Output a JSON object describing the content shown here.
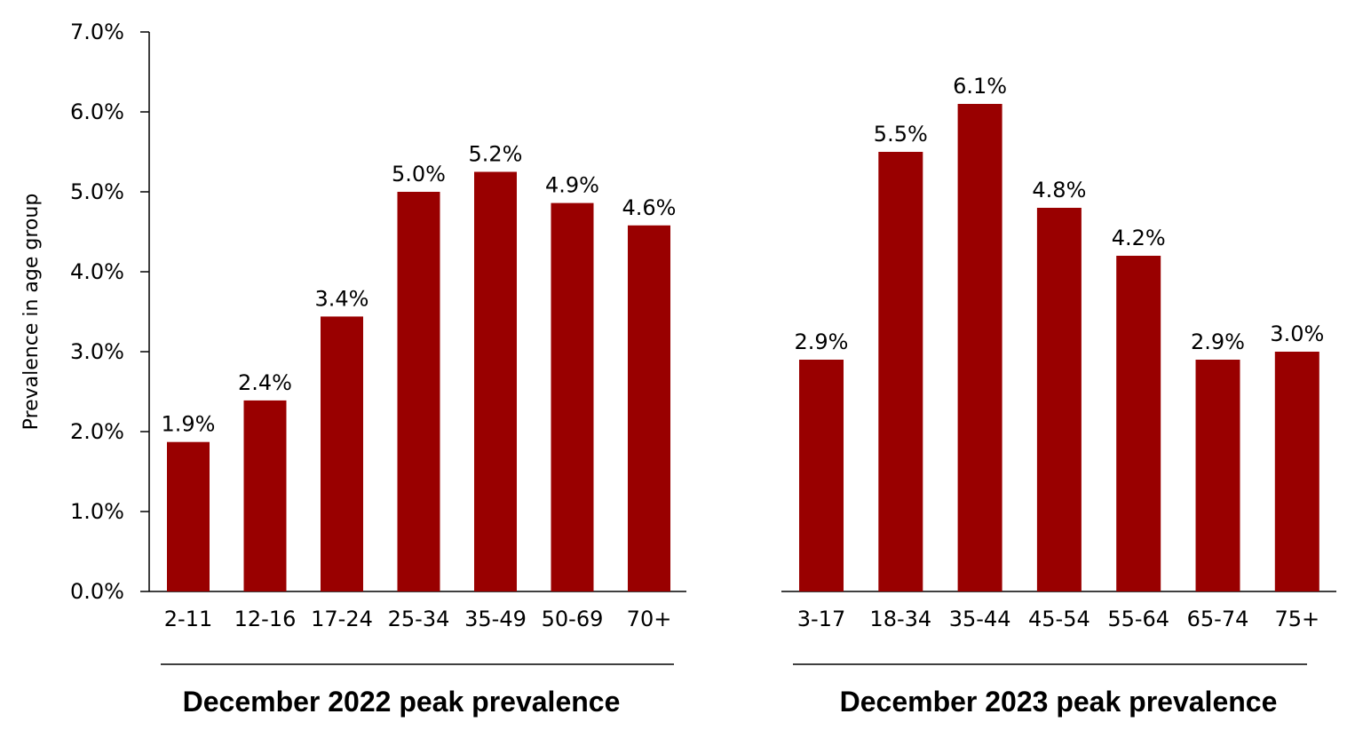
{
  "chart_data": {
    "type": "bar",
    "ylabel": "Prevalence in age group",
    "ylim": [
      0,
      7
    ],
    "yticks": [
      "0.0%",
      "1.0%",
      "2.0%",
      "3.0%",
      "4.0%",
      "5.0%",
      "6.0%",
      "7.0%"
    ],
    "bar_color": "#990000",
    "grid": false,
    "panels": [
      {
        "title": "December 2022 peak prevalence",
        "categories": [
          "2-11",
          "12-16",
          "17-24",
          "25-34",
          "35-49",
          "50-69",
          "70+"
        ],
        "values": [
          1.87,
          2.39,
          3.44,
          5.0,
          5.25,
          4.86,
          4.58
        ],
        "labels": [
          "1.9%",
          "2.4%",
          "3.4%",
          "5.0%",
          "5.2%",
          "4.9%",
          "4.6%"
        ]
      },
      {
        "title": "December 2023 peak prevalence",
        "categories": [
          "3-17",
          "18-34",
          "35-44",
          "45-54",
          "55-64",
          "65-74",
          "75+"
        ],
        "values": [
          2.9,
          5.5,
          6.1,
          4.8,
          4.2,
          2.9,
          3.0
        ],
        "labels": [
          "2.9%",
          "5.5%",
          "6.1%",
          "4.8%",
          "4.2%",
          "2.9%",
          "3.0%"
        ]
      }
    ]
  }
}
